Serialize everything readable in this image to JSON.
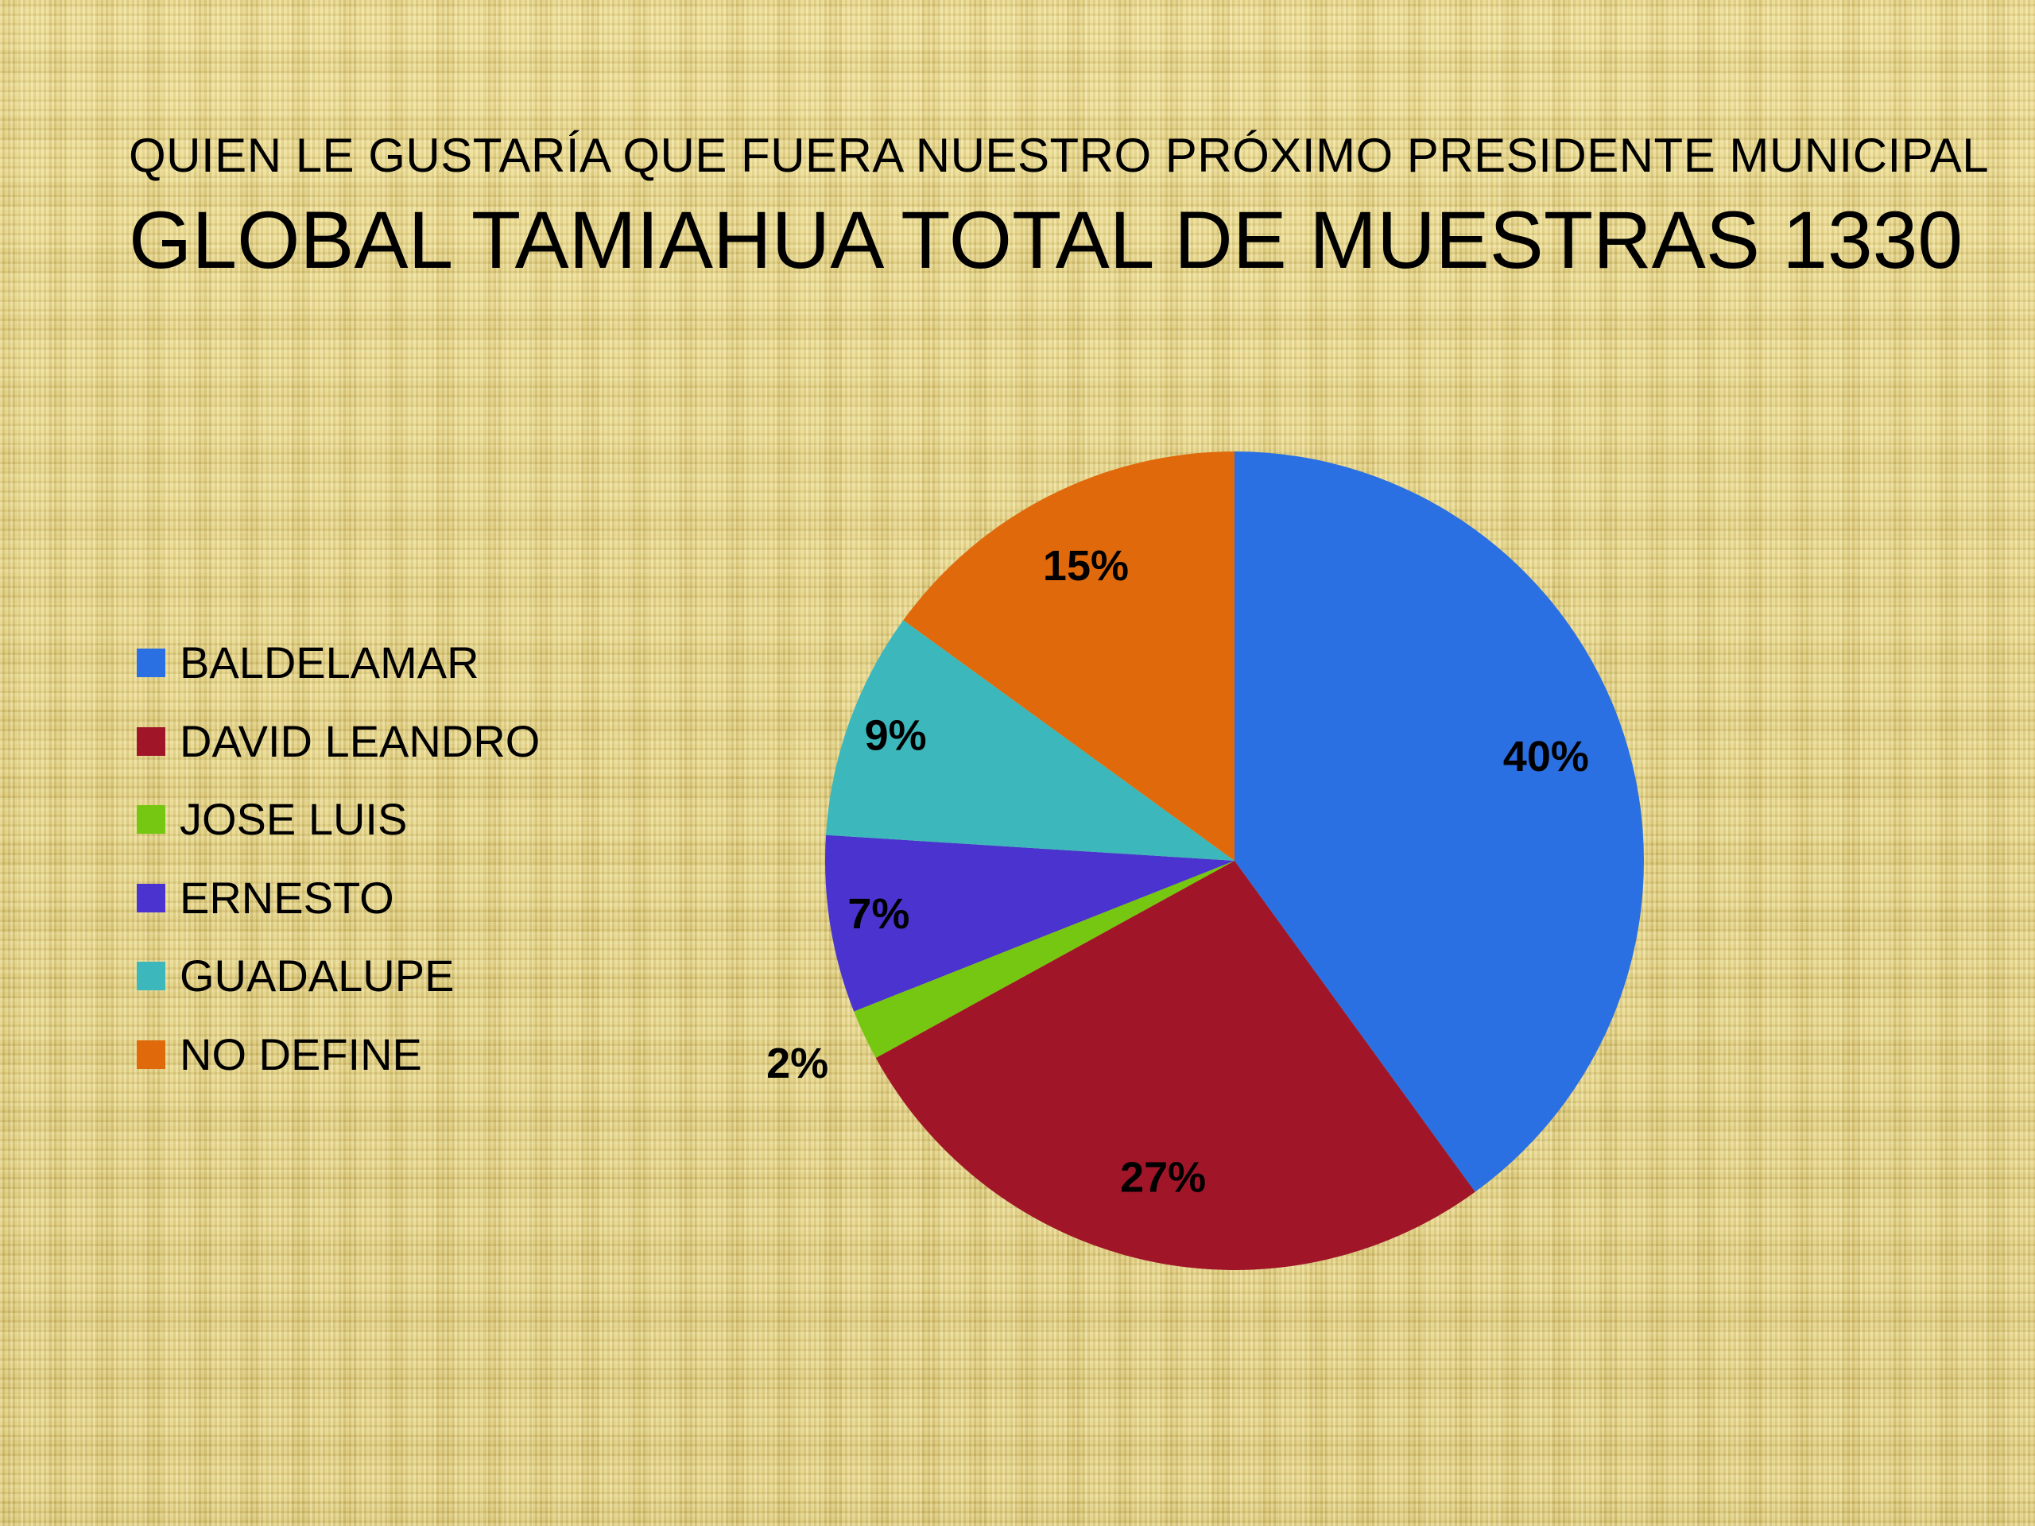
{
  "header": {
    "subtitle": "QUIEN LE GUSTARÍA QUE FUERA NUESTRO PRÓXIMO PRESIDENTE MUNICIPAL",
    "title": "GLOBAL TAMIAHUA  TOTAL DE MUESTRAS 1330"
  },
  "chart_data": {
    "type": "pie",
    "title": "GLOBAL TAMIAHUA  TOTAL DE MUESTRAS 1330",
    "subtitle": "QUIEN LE GUSTARÍA QUE FUERA NUESTRO PRÓXIMO PRESIDENTE MUNICIPAL",
    "legend_position": "left",
    "categories": [
      "BALDELAMAR",
      "DAVID LEANDRO",
      "JOSE LUIS",
      "ERNESTO",
      "GUADALUPE",
      "NO DEFINE"
    ],
    "values": [
      40,
      27,
      2,
      7,
      9,
      15
    ],
    "labels": [
      "40%",
      "27%",
      "2%",
      "7%",
      "9%",
      "15%"
    ],
    "colors": [
      "#2b70e2",
      "#a01628",
      "#76c711",
      "#4a33cf",
      "#3cb8bc",
      "#e06a0b"
    ]
  }
}
